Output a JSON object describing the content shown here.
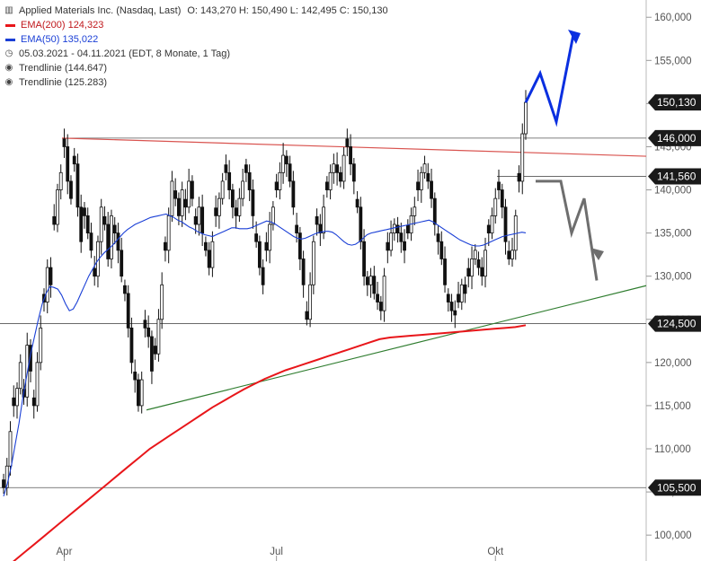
{
  "header": {
    "title": "Applied Materials Inc. (Nasdaq, Last)",
    "ohlc": "O: 143,270  H: 150,490  L: 142,495  C: 150,130",
    "ema200": "EMA(200)  124,323",
    "ema50": "EMA(50)  135,022",
    "period": "05.03.2021 - 04.11.2021   (EDT, 8 Monate, 1 Tag)",
    "trend1": "Trendlinie  (144.647)",
    "trend2": "Trendlinie  (125.283)"
  },
  "colors": {
    "ema200": "#e8161a",
    "ema50": "#1a3fd6",
    "resistance": "#d9534f",
    "support": "#2f7d2f",
    "bull_arrow": "#0a2fe0",
    "bear_arrow": "#6e6e6e",
    "level_badge": "#1a1a1a"
  },
  "chart_data": {
    "type": "candlestick",
    "ylim": [
      97000,
      162000
    ],
    "y_ticks": [
      "100,000",
      "105,000",
      "110,000",
      "115,000",
      "120,000",
      "125,000",
      "130,000",
      "135,000",
      "140,000",
      "145,000",
      "150,000",
      "155,000",
      "160,000"
    ],
    "x_ticks": [
      "Apr",
      "Jul",
      "Okt"
    ],
    "x_tick_index": [
      18,
      81,
      146
    ],
    "levels": [
      {
        "label": "150,130",
        "value": 150130
      },
      {
        "label": "146,000",
        "value": 146000
      },
      {
        "label": "141,560",
        "value": 141560
      },
      {
        "label": "124,500",
        "value": 124500
      },
      {
        "label": "105,500",
        "value": 105500
      }
    ],
    "close": [
      105500,
      108000,
      112000,
      115000,
      117000,
      120000,
      116000,
      122000,
      119000,
      115000,
      120000,
      124000,
      127000,
      131000,
      129000,
      136000,
      140000,
      142000,
      145000,
      141000,
      139000,
      143000,
      138000,
      134000,
      137000,
      135000,
      133000,
      130000,
      134000,
      138000,
      136000,
      132000,
      137000,
      135000,
      133000,
      130000,
      128000,
      124000,
      120000,
      118000,
      115000,
      118000,
      124000,
      123000,
      119000,
      121000,
      125000,
      129000,
      133000,
      137000,
      141000,
      139000,
      137000,
      140000,
      138000,
      141000,
      139000,
      136000,
      138000,
      135000,
      133000,
      131000,
      134000,
      137000,
      139000,
      141000,
      142000,
      140000,
      138000,
      137000,
      139000,
      141000,
      142000,
      140000,
      137000,
      134000,
      131000,
      129000,
      133000,
      136000,
      138000,
      140000,
      142000,
      144000,
      143000,
      141000,
      138000,
      135000,
      132000,
      129000,
      125000,
      129000,
      134000,
      136000,
      135000,
      138000,
      140000,
      142000,
      143000,
      142000,
      141000,
      144000,
      145000,
      143000,
      141000,
      138000,
      134000,
      130000,
      129000,
      130000,
      128000,
      127000,
      126000,
      130000,
      133000,
      135000,
      136000,
      135000,
      134000,
      133000,
      135000,
      137000,
      138000,
      140000,
      142000,
      143000,
      141000,
      139000,
      136000,
      134000,
      132000,
      129000,
      127000,
      126000,
      125500,
      127000,
      129000,
      128000,
      130000,
      132000,
      133000,
      131000,
      130000,
      133000,
      135000,
      137000,
      139000,
      140000,
      138000,
      134000,
      132000,
      133000,
      137000,
      141000,
      146500,
      150130
    ],
    "ema50": [
      104500,
      106000,
      108000,
      110500,
      113000,
      116000,
      118500,
      121000,
      123000,
      125000,
      126800,
      128000,
      128800,
      128700,
      128500,
      127800,
      126800,
      126000,
      126200,
      127000,
      128000,
      129000,
      130000,
      130800,
      131600,
      132200,
      132700,
      133100,
      133500,
      134000,
      134500,
      135000,
      135400,
      135700,
      136000,
      136200,
      136400,
      136600,
      136800,
      136900,
      137000,
      137100,
      137200,
      137000,
      136800,
      136500,
      136300,
      136000,
      135700,
      135500,
      135200,
      135000,
      134800,
      134700,
      134600,
      134800,
      135000,
      135200,
      135400,
      135600,
      135600,
      135500,
      135500,
      135500,
      135600,
      135800,
      136000,
      136200,
      136400,
      136300,
      136100,
      135800,
      135500,
      135200,
      134900,
      134600,
      134400,
      134300,
      134400,
      134600,
      134800,
      135000,
      135100,
      135200,
      135200,
      135100,
      134800,
      134400,
      134000,
      133700,
      133600,
      133700,
      134000,
      134400,
      134800,
      135000,
      135100,
      135200,
      135300,
      135400,
      135500,
      135600,
      135700,
      135800,
      135900,
      136000,
      136100,
      136200,
      136300,
      136400,
      136500,
      136300,
      136000,
      135700,
      135400,
      135100,
      134800,
      134500,
      134200,
      134000,
      133800,
      133600,
      133500,
      133500,
      133600,
      133800,
      134000,
      134200,
      134400,
      134600,
      134700,
      134800,
      134900,
      135000,
      135100,
      135022
    ],
    "ema200": [
      96000,
      97000,
      98000,
      99000,
      100000,
      101000,
      102000,
      103000,
      104000,
      105000,
      106000,
      107000,
      108000,
      109000,
      110000,
      110800,
      111600,
      112400,
      113200,
      114000,
      114800,
      115500,
      116200,
      116900,
      117500,
      118100,
      118600,
      119100,
      119500,
      119900,
      120300,
      120700,
      121100,
      121500,
      121900,
      122300,
      122700,
      122900,
      123000,
      123100,
      123200,
      123300,
      123400,
      123500,
      123600,
      123700,
      123800,
      123900,
      124000,
      124100,
      124323
    ]
  }
}
